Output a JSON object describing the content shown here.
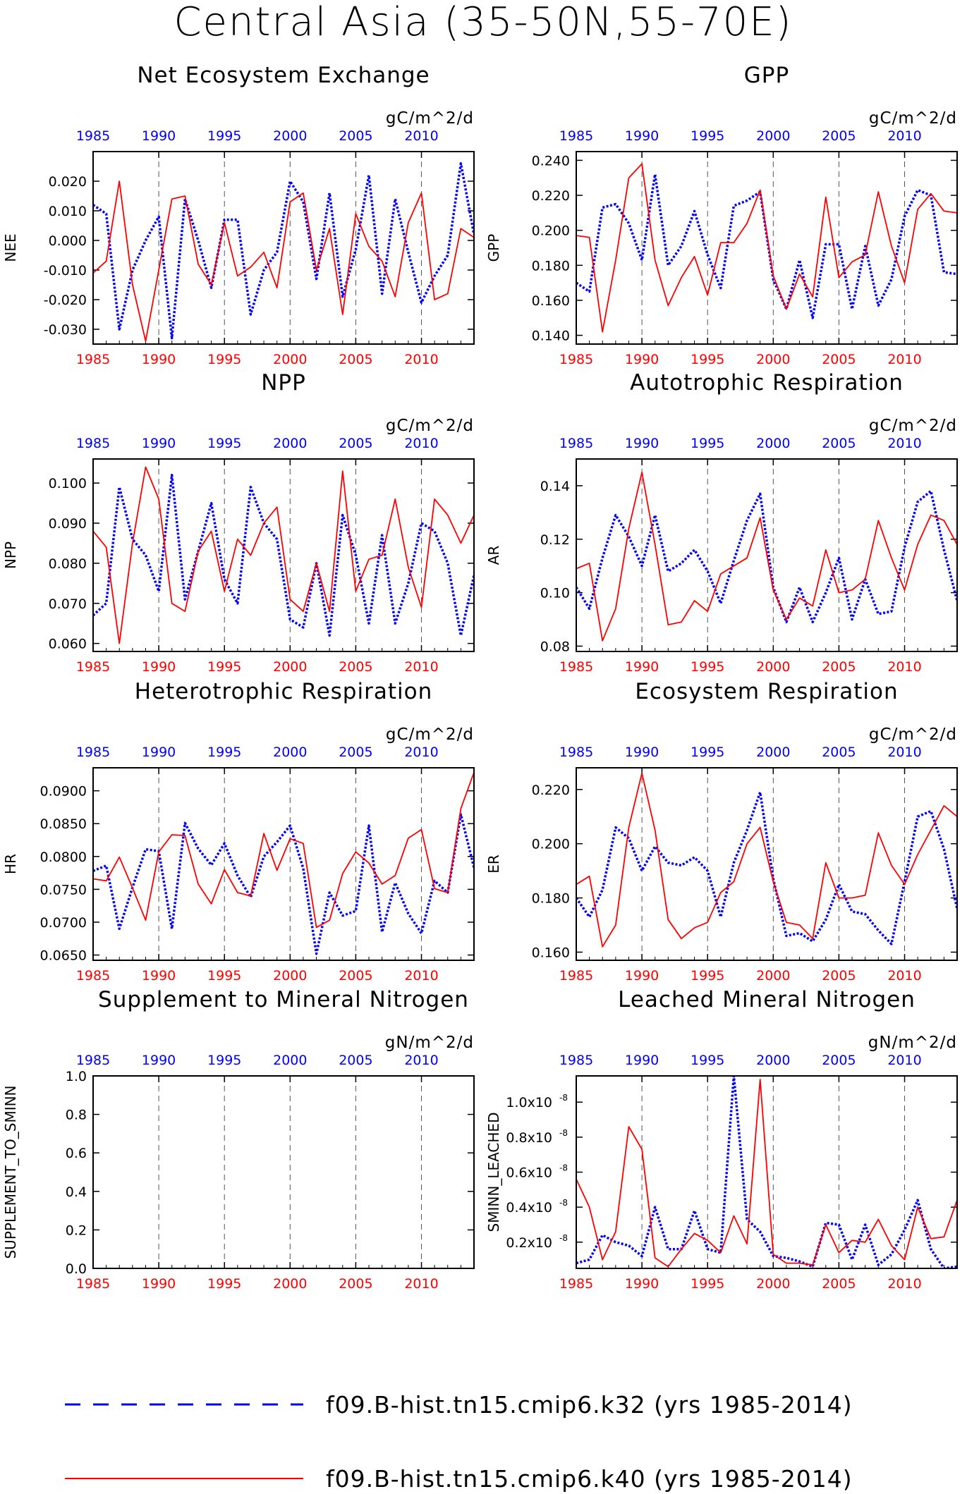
{
  "title": "Central Asia (35-50N,55-70E)",
  "colors": {
    "k32": "#0000ff",
    "k40": "#ff0000",
    "axis": "#000000",
    "grid": "#555555"
  },
  "legend": [
    {
      "series": "k32",
      "label": "f09.B-hist.tn15.cmip6.k32 (yrs 1985-2014)",
      "style": "dashed"
    },
    {
      "series": "k40",
      "label": "f09.B-hist.tn15.cmip6.k40 (yrs 1985-2014)",
      "style": "solid"
    }
  ],
  "chart_data": [
    {
      "type": "line",
      "title": "Net Ecosystem Exchange",
      "units": "gC/m^2/d",
      "ylabel": "NEE",
      "x": [
        1985,
        1986,
        1987,
        1988,
        1989,
        1990,
        1991,
        1992,
        1993,
        1994,
        1995,
        1996,
        1997,
        1998,
        1999,
        2000,
        2001,
        2002,
        2003,
        2004,
        2005,
        2006,
        2007,
        2008,
        2009,
        2010,
        2011,
        2012,
        2013,
        2014
      ],
      "xlim": [
        1985,
        2014
      ],
      "xticks": [
        1985,
        1990,
        1995,
        2000,
        2005,
        2010
      ],
      "ylim": [
        -0.035,
        0.03
      ],
      "yticks": [
        -0.03,
        -0.02,
        -0.01,
        0.0,
        0.01,
        0.02
      ],
      "ytick_labels": [
        "-0.030",
        "-0.020",
        "-0.010",
        "0.000",
        "0.010",
        "0.020"
      ],
      "series": [
        {
          "key": "k32",
          "values": [
            0.012,
            0.009,
            -0.03,
            -0.01,
            0.0,
            0.008,
            -0.033,
            0.014,
            0.0,
            -0.016,
            0.007,
            0.007,
            -0.025,
            -0.01,
            -0.004,
            0.02,
            0.013,
            -0.013,
            0.016,
            -0.019,
            -0.003,
            0.022,
            -0.018,
            0.014,
            -0.004,
            -0.021,
            -0.012,
            -0.005,
            0.026,
            0.002
          ]
        },
        {
          "key": "k40",
          "values": [
            -0.011,
            -0.007,
            0.02,
            -0.015,
            -0.034,
            -0.01,
            0.014,
            0.015,
            -0.008,
            -0.015,
            0.006,
            -0.012,
            -0.009,
            -0.004,
            -0.016,
            0.013,
            0.016,
            -0.01,
            0.004,
            -0.025,
            0.009,
            -0.002,
            -0.007,
            -0.019,
            0.006,
            0.016,
            -0.02,
            -0.018,
            0.004,
            0.001
          ]
        }
      ]
    },
    {
      "type": "line",
      "title": "GPP",
      "units": "gC/m^2/d",
      "ylabel": "GPP",
      "x": [
        1985,
        1986,
        1987,
        1988,
        1989,
        1990,
        1991,
        1992,
        1993,
        1994,
        1995,
        1996,
        1997,
        1998,
        1999,
        2000,
        2001,
        2002,
        2003,
        2004,
        2005,
        2006,
        2007,
        2008,
        2009,
        2010,
        2011,
        2012,
        2013,
        2014
      ],
      "xlim": [
        1985,
        2014
      ],
      "xticks": [
        1985,
        1990,
        1995,
        2000,
        2005,
        2010
      ],
      "ylim": [
        0.135,
        0.245
      ],
      "yticks": [
        0.14,
        0.16,
        0.18,
        0.2,
        0.22,
        0.24
      ],
      "ytick_labels": [
        "0.140",
        "0.160",
        "0.180",
        "0.200",
        "0.220",
        "0.240"
      ],
      "series": [
        {
          "key": "k32",
          "values": [
            0.17,
            0.165,
            0.213,
            0.215,
            0.204,
            0.183,
            0.232,
            0.18,
            0.191,
            0.211,
            0.186,
            0.167,
            0.214,
            0.217,
            0.222,
            0.172,
            0.155,
            0.183,
            0.15,
            0.192,
            0.192,
            0.155,
            0.191,
            0.157,
            0.172,
            0.208,
            0.223,
            0.22,
            0.176,
            0.175
          ]
        },
        {
          "key": "k40",
          "values": [
            0.197,
            0.196,
            0.142,
            0.183,
            0.23,
            0.238,
            0.183,
            0.157,
            0.173,
            0.185,
            0.163,
            0.193,
            0.193,
            0.204,
            0.223,
            0.174,
            0.155,
            0.175,
            0.162,
            0.219,
            0.173,
            0.182,
            0.186,
            0.222,
            0.191,
            0.17,
            0.212,
            0.221,
            0.211,
            0.21
          ]
        }
      ]
    },
    {
      "type": "line",
      "title": "NPP",
      "units": "gC/m^2/d",
      "ylabel": "NPP",
      "x": [
        1985,
        1986,
        1987,
        1988,
        1989,
        1990,
        1991,
        1992,
        1993,
        1994,
        1995,
        1996,
        1997,
        1998,
        1999,
        2000,
        2001,
        2002,
        2003,
        2004,
        2005,
        2006,
        2007,
        2008,
        2009,
        2010,
        2011,
        2012,
        2013,
        2014
      ],
      "xlim": [
        1985,
        2014
      ],
      "xticks": [
        1985,
        1990,
        1995,
        2000,
        2005,
        2010
      ],
      "ylim": [
        0.058,
        0.106
      ],
      "yticks": [
        0.06,
        0.07,
        0.08,
        0.09,
        0.1
      ],
      "ytick_labels": [
        "0.060",
        "0.070",
        "0.080",
        "0.090",
        "0.100"
      ],
      "series": [
        {
          "key": "k32",
          "values": [
            0.067,
            0.07,
            0.099,
            0.086,
            0.082,
            0.073,
            0.102,
            0.071,
            0.083,
            0.095,
            0.076,
            0.07,
            0.099,
            0.09,
            0.086,
            0.066,
            0.064,
            0.08,
            0.062,
            0.092,
            0.082,
            0.065,
            0.087,
            0.065,
            0.075,
            0.09,
            0.088,
            0.08,
            0.062,
            0.077
          ]
        },
        {
          "key": "k40",
          "values": [
            0.088,
            0.084,
            0.06,
            0.085,
            0.104,
            0.096,
            0.07,
            0.068,
            0.083,
            0.088,
            0.073,
            0.086,
            0.082,
            0.09,
            0.094,
            0.071,
            0.068,
            0.08,
            0.068,
            0.103,
            0.073,
            0.081,
            0.082,
            0.096,
            0.079,
            0.069,
            0.096,
            0.092,
            0.085,
            0.092
          ]
        }
      ]
    },
    {
      "type": "line",
      "title": "Autotrophic Respiration",
      "units": "gC/m^2/d",
      "ylabel": "AR",
      "x": [
        1985,
        1986,
        1987,
        1988,
        1989,
        1990,
        1991,
        1992,
        1993,
        1994,
        1995,
        1996,
        1997,
        1998,
        1999,
        2000,
        2001,
        2002,
        2003,
        2004,
        2005,
        2006,
        2007,
        2008,
        2009,
        2010,
        2011,
        2012,
        2013,
        2014
      ],
      "xlim": [
        1985,
        2014
      ],
      "xticks": [
        1985,
        1990,
        1995,
        2000,
        2005,
        2010
      ],
      "ylim": [
        0.078,
        0.15
      ],
      "yticks": [
        0.08,
        0.1,
        0.12,
        0.14
      ],
      "ytick_labels": [
        "0.08",
        "0.10",
        "0.12",
        "0.14"
      ],
      "series": [
        {
          "key": "k32",
          "values": [
            0.102,
            0.094,
            0.113,
            0.129,
            0.121,
            0.11,
            0.129,
            0.108,
            0.111,
            0.116,
            0.108,
            0.096,
            0.112,
            0.127,
            0.137,
            0.102,
            0.089,
            0.102,
            0.089,
            0.1,
            0.113,
            0.09,
            0.105,
            0.092,
            0.093,
            0.117,
            0.134,
            0.138,
            0.116,
            0.097
          ]
        },
        {
          "key": "k40",
          "values": [
            0.109,
            0.111,
            0.082,
            0.094,
            0.124,
            0.145,
            0.118,
            0.088,
            0.089,
            0.097,
            0.093,
            0.107,
            0.11,
            0.113,
            0.128,
            0.101,
            0.09,
            0.098,
            0.095,
            0.116,
            0.1,
            0.101,
            0.105,
            0.127,
            0.113,
            0.101,
            0.118,
            0.129,
            0.127,
            0.118
          ]
        }
      ]
    },
    {
      "type": "line",
      "title": "Heterotrophic Respiration",
      "units": "gC/m^2/d",
      "ylabel": "HR",
      "x": [
        1985,
        1986,
        1987,
        1988,
        1989,
        1990,
        1991,
        1992,
        1993,
        1994,
        1995,
        1996,
        1997,
        1998,
        1999,
        2000,
        2001,
        2002,
        2003,
        2004,
        2005,
        2006,
        2007,
        2008,
        2009,
        2010,
        2011,
        2012,
        2013,
        2014
      ],
      "xlim": [
        1985,
        2014
      ],
      "xticks": [
        1985,
        1990,
        1995,
        2000,
        2005,
        2010
      ],
      "ylim": [
        0.0642,
        0.0935
      ],
      "yticks": [
        0.065,
        0.07,
        0.075,
        0.08,
        0.085,
        0.09
      ],
      "ytick_labels": [
        "0.0650",
        "0.0700",
        "0.0750",
        "0.0800",
        "0.0850",
        "0.0900"
      ],
      "series": [
        {
          "key": "k32",
          "values": [
            0.0778,
            0.0786,
            0.069,
            0.0753,
            0.0811,
            0.0808,
            0.069,
            0.0851,
            0.0812,
            0.0787,
            0.082,
            0.0771,
            0.0738,
            0.08,
            0.0822,
            0.0847,
            0.0782,
            0.0652,
            0.0745,
            0.071,
            0.0717,
            0.0847,
            0.0685,
            0.076,
            0.0713,
            0.0683,
            0.0763,
            0.0745,
            0.0864,
            0.0783
          ]
        },
        {
          "key": "k40",
          "values": [
            0.0766,
            0.0763,
            0.0799,
            0.0752,
            0.0703,
            0.0807,
            0.0833,
            0.0832,
            0.0758,
            0.0728,
            0.078,
            0.0745,
            0.074,
            0.0835,
            0.0779,
            0.0827,
            0.082,
            0.0692,
            0.0703,
            0.0774,
            0.0807,
            0.079,
            0.0758,
            0.0771,
            0.0828,
            0.0841,
            0.0751,
            0.0745,
            0.0873,
            0.0928
          ]
        }
      ]
    },
    {
      "type": "line",
      "title": "Ecosystem Respiration",
      "units": "gC/m^2/d",
      "ylabel": "ER",
      "x": [
        1985,
        1986,
        1987,
        1988,
        1989,
        1990,
        1991,
        1992,
        1993,
        1994,
        1995,
        1996,
        1997,
        1998,
        1999,
        2000,
        2001,
        2002,
        2003,
        2004,
        2005,
        2006,
        2007,
        2008,
        2009,
        2010,
        2011,
        2012,
        2013,
        2014
      ],
      "xlim": [
        1985,
        2014
      ],
      "xticks": [
        1985,
        1990,
        1995,
        2000,
        2005,
        2010
      ],
      "ylim": [
        0.157,
        0.228
      ],
      "yticks": [
        0.16,
        0.18,
        0.2,
        0.22
      ],
      "ytick_labels": [
        "0.160",
        "0.180",
        "0.200",
        "0.220"
      ],
      "series": [
        {
          "key": "k32",
          "values": [
            0.18,
            0.173,
            0.183,
            0.206,
            0.202,
            0.19,
            0.199,
            0.193,
            0.192,
            0.195,
            0.19,
            0.173,
            0.193,
            0.205,
            0.219,
            0.187,
            0.166,
            0.167,
            0.164,
            0.172,
            0.185,
            0.175,
            0.174,
            0.168,
            0.163,
            0.186,
            0.21,
            0.212,
            0.198,
            0.176
          ]
        },
        {
          "key": "k40",
          "values": [
            0.185,
            0.188,
            0.162,
            0.17,
            0.206,
            0.226,
            0.205,
            0.172,
            0.165,
            0.169,
            0.171,
            0.182,
            0.186,
            0.2,
            0.206,
            0.186,
            0.171,
            0.17,
            0.165,
            0.193,
            0.18,
            0.18,
            0.181,
            0.204,
            0.192,
            0.185,
            0.196,
            0.205,
            0.214,
            0.21
          ]
        }
      ]
    },
    {
      "type": "line",
      "title": "Supplement to Mineral Nitrogen",
      "units": "gN/m^2/d",
      "ylabel": "SUPPLEMENT_TO_SMINN",
      "x": [
        1985,
        1986,
        1987,
        1988,
        1989,
        1990,
        1991,
        1992,
        1993,
        1994,
        1995,
        1996,
        1997,
        1998,
        1999,
        2000,
        2001,
        2002,
        2003,
        2004,
        2005,
        2006,
        2007,
        2008,
        2009,
        2010,
        2011,
        2012,
        2013,
        2014
      ],
      "xlim": [
        1985,
        2014
      ],
      "xticks": [
        1985,
        1990,
        1995,
        2000,
        2005,
        2010
      ],
      "ylim": [
        0,
        1
      ],
      "yticks": [
        0,
        0.2,
        0.4,
        0.6,
        0.8,
        1.0
      ],
      "ytick_labels": [
        "0.0",
        "0.2",
        "0.4",
        "0.6",
        "0.8",
        "1.0"
      ],
      "series": []
    },
    {
      "type": "line",
      "title": "Leached Mineral Nitrogen",
      "units": "gN/m^2/d",
      "ylabel": "SMINN_LEACHED",
      "x": [
        1985,
        1986,
        1987,
        1988,
        1989,
        1990,
        1991,
        1992,
        1993,
        1994,
        1995,
        1996,
        1997,
        1998,
        1999,
        2000,
        2001,
        2002,
        2003,
        2004,
        2005,
        2006,
        2007,
        2008,
        2009,
        2010,
        2011,
        2012,
        2013,
        2014
      ],
      "xlim": [
        1985,
        2014
      ],
      "xticks": [
        1985,
        1990,
        1995,
        2000,
        2005,
        2010
      ],
      "ylim": [
        5e-10,
        1.15e-08
      ],
      "yticks": [
        2e-09,
        4e-09,
        6e-09,
        8e-09,
        1e-08
      ],
      "ytick_labels": [
        "0.2",
        "0.4",
        "0.6",
        "0.8",
        "1.0"
      ],
      "ytick_suffix": "x10",
      "ytick_exp": "-8",
      "series": [
        {
          "key": "k32",
          "values": [
            8e-10,
            1e-09,
            2.4e-09,
            2e-09,
            1.8e-09,
            1.2e-09,
            4e-09,
            1.6e-09,
            1.6e-09,
            3.8e-09,
            1.6e-09,
            1.4e-09,
            1.15e-08,
            3.3e-09,
            2.6e-09,
            1.2e-09,
            1.1e-09,
            9e-10,
            6e-10,
            3.1e-09,
            3e-09,
            1e-09,
            3e-09,
            7e-10,
            1.3e-09,
            2.7e-09,
            4.4e-09,
            1.6e-09,
            5e-10,
            6e-10
          ]
        },
        {
          "key": "k40",
          "values": [
            5.6e-09,
            4e-09,
            1e-09,
            2.6e-09,
            8.6e-09,
            7.3e-09,
            1.1e-09,
            6e-10,
            1.6e-09,
            2.5e-09,
            2.1e-09,
            1.4e-09,
            3.5e-09,
            1.9e-09,
            1.13e-08,
            1.3e-09,
            8e-10,
            8e-10,
            7e-10,
            3e-09,
            1.4e-09,
            2.1e-09,
            2e-09,
            3.3e-09,
            1.8e-09,
            1e-09,
            4e-09,
            2.2e-09,
            2.3e-09,
            4.4e-09
          ]
        }
      ]
    }
  ]
}
